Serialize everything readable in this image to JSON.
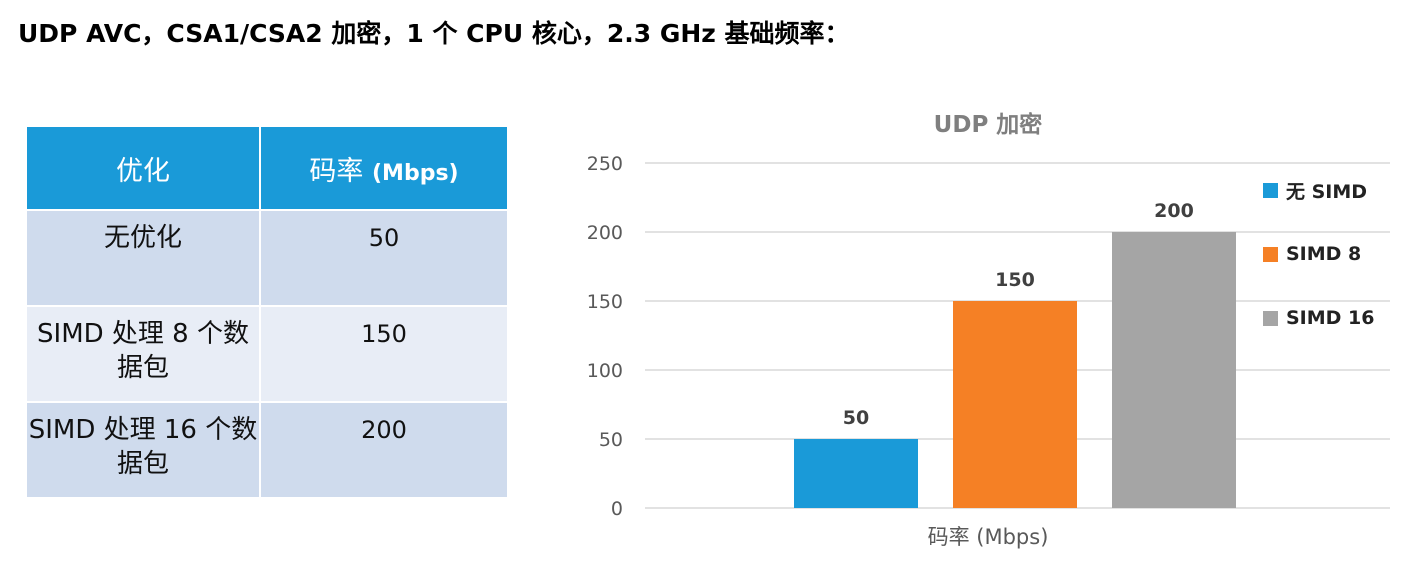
{
  "page_title": "UDP AVC，CSA1/CSA2 加密，1 个 CPU 核心，2.3 GHz 基础频率：",
  "table": {
    "headers": {
      "optimization": "优化",
      "bitrate_prefix": "码率 ",
      "bitrate_unit": "(Mbps)"
    },
    "rows": [
      {
        "optimization": "无优化",
        "bitrate": "50"
      },
      {
        "optimization": "SIMD 处理 8 个数据包",
        "bitrate": "150"
      },
      {
        "optimization": "SIMD 处理 16 个数据包",
        "bitrate": "200"
      }
    ]
  },
  "chart_data": {
    "type": "bar",
    "title": "UDP 加密",
    "categories": [
      "码率 (Mbps)"
    ],
    "xlabel": "码率 (Mbps)",
    "ylabel": "",
    "ylim": [
      0,
      250
    ],
    "yticks": [
      0,
      50,
      100,
      150,
      200,
      250
    ],
    "grid": true,
    "legend_position": "right",
    "series": [
      {
        "name": "无 SIMD",
        "values": [
          50
        ],
        "color": "#1a9ad8"
      },
      {
        "name": "SIMD 8",
        "values": [
          150
        ],
        "color": "#f58025"
      },
      {
        "name": "SIMD 16",
        "values": [
          200
        ],
        "color": "#a5a5a5"
      }
    ]
  }
}
